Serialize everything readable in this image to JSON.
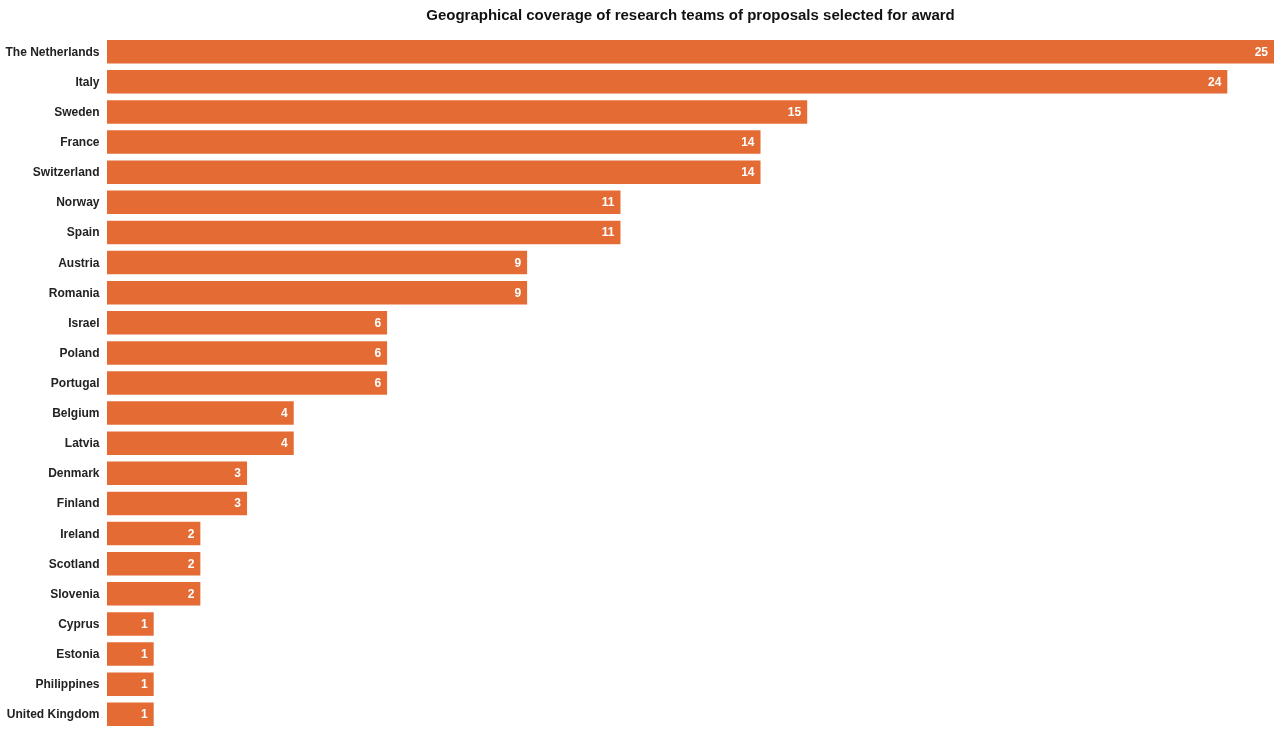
{
  "chart_data": {
    "type": "bar",
    "orientation": "horizontal",
    "title": "Geographical coverage of research teams of proposals selected for award",
    "categories": [
      "The Netherlands",
      "Italy",
      "Sweden",
      "France",
      "Switzerland",
      "Norway",
      "Spain",
      "Austria",
      "Romania",
      "Israel",
      "Poland",
      "Portugal",
      "Belgium",
      "Latvia",
      "Denmark",
      "Finland",
      "Ireland",
      "Scotland",
      "Slovenia",
      "Cyprus",
      "Estonia",
      "Philippines",
      "United Kingdom"
    ],
    "values": [
      25,
      24,
      15,
      14,
      14,
      11,
      11,
      9,
      9,
      6,
      6,
      6,
      4,
      4,
      3,
      3,
      2,
      2,
      2,
      1,
      1,
      1,
      1
    ],
    "color": "#e56b35",
    "data_labels": true
  }
}
